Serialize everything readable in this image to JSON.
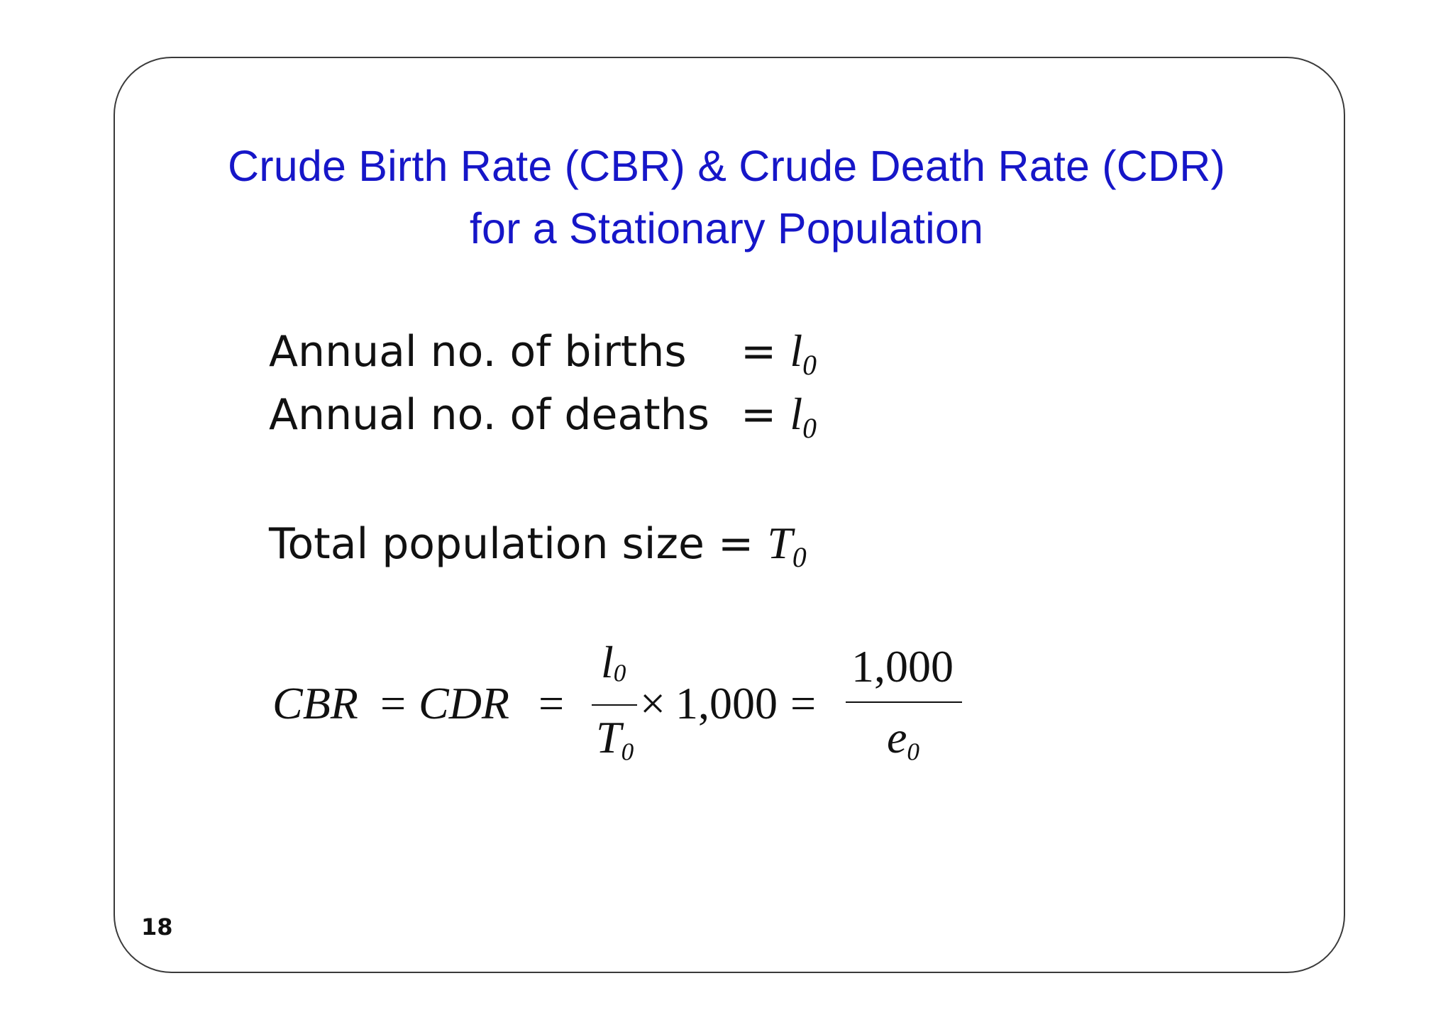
{
  "title": {
    "line1_part1": "Crude Birth Rate (",
    "line1_abbr1": "CBR",
    "line1_part2": ") & Crude Death Rate (",
    "line1_abbr2": "CDR",
    "line1_part3": ")",
    "line2": "for a Stationary Population"
  },
  "rows": {
    "births_label": "Annual no. of births",
    "births_eq": "=",
    "births_sym": "l",
    "births_sub": "0",
    "deaths_label": "Annual no. of deaths",
    "deaths_eq": "=",
    "deaths_sym": "l",
    "deaths_sub": "0",
    "total_label": "Total population size =",
    "total_sym": "T",
    "total_sub": "0"
  },
  "formula": {
    "lhs": "CBR",
    "eq1": "=",
    "mid": "CDR",
    "eq2": "=",
    "num1_sym": "l",
    "num1_sub": "0",
    "den1_sym": "T",
    "den1_sub": "0",
    "times": "×",
    "factor": "1,000",
    "eq3": "=",
    "num2": "1,000",
    "den2_sym": "e",
    "den2_sub": "0"
  },
  "page_number": "18",
  "colors": {
    "title": "#1616c8",
    "text": "#111111",
    "border": "#3a3a3a"
  }
}
